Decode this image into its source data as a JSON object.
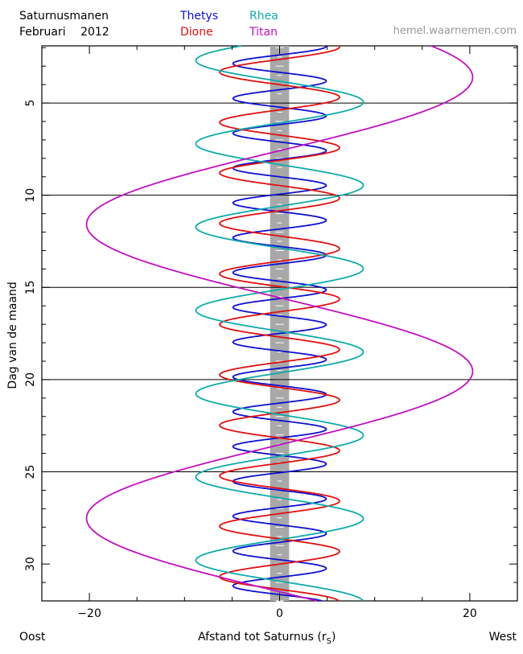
{
  "header": {
    "title_line1": "Saturnusmanen",
    "title_line2": "Februari",
    "year": "2012",
    "website": "hemel.waarnemen.com"
  },
  "footer": {
    "left": "Oost",
    "right": "West",
    "xlabel_prefix": "Afstand tot Saturnus (r",
    "xlabel_sub": "S",
    "xlabel_suffix": ")"
  },
  "chart_data": {
    "type": "line",
    "xlabel": "Afstand tot Saturnus (rS)",
    "ylabel": "Dag van de maand",
    "xlim": [
      -25,
      25
    ],
    "ylim": [
      1.9,
      32
    ],
    "x_ticks": [
      -20,
      0,
      20
    ],
    "y_ticks": [
      5,
      10,
      15,
      20,
      25,
      30
    ],
    "horizontal_lines_at_days": [
      5,
      10,
      15,
      20,
      25
    ],
    "planet_band_halfwidth": 1,
    "series": [
      {
        "name": "Thetys",
        "color": "#1010d0",
        "amplitude": 4.9,
        "period_days": 1.888,
        "phase_reference_day": 1.92,
        "peak_side": "west"
      },
      {
        "name": "Dione",
        "color": "#e01010",
        "amplitude": 6.3,
        "period_days": 2.737,
        "phase_reference_day": 1.95,
        "peak_side": "west"
      },
      {
        "name": "Rhea",
        "color": "#10aaaa",
        "amplitude": 8.8,
        "period_days": 4.518,
        "phase_reference_day": 4.95,
        "peak_side": "west"
      },
      {
        "name": "Titan",
        "color": "#c010c0",
        "amplitude": 20.3,
        "period_days": 15.945,
        "phase_reference_day": 3.6,
        "peak_side": "west"
      }
    ]
  }
}
